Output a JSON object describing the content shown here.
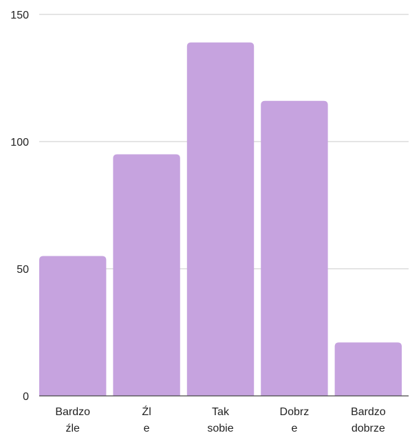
{
  "chart_data": {
    "type": "bar",
    "title": "",
    "xlabel": "",
    "ylabel": "",
    "categories": [
      [
        "Bardzo",
        "źle"
      ],
      [
        "Źl",
        "e"
      ],
      [
        "Tak",
        "sobie"
      ],
      [
        "Dobrz",
        "e"
      ],
      [
        "Bardzo",
        "dobrze"
      ]
    ],
    "values": [
      55,
      95,
      139,
      116,
      21
    ],
    "ylim": [
      0,
      150
    ],
    "yticks": [
      "0",
      "50",
      "100",
      "150"
    ],
    "grid": true,
    "legend": "none",
    "colors": {
      "bar": "#c6a3df",
      "grid": "#c8c8c8",
      "axis": "#444444",
      "text": "#222222"
    }
  }
}
